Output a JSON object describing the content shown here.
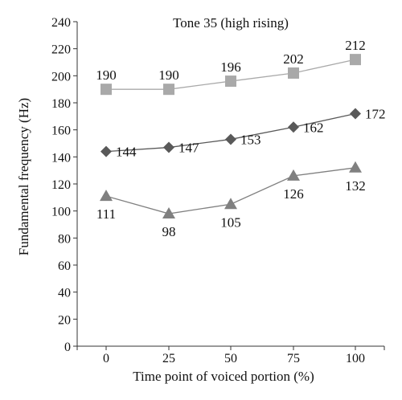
{
  "chart_data": {
    "type": "line",
    "title": "Tone 35 (high rising)",
    "xlabel": "Time point of voiced portion (%)",
    "ylabel": "Fundamental frequency (Hz)",
    "x": [
      0,
      25,
      50,
      75,
      100
    ],
    "x_tick_labels": [
      "0",
      "25",
      "50",
      "75",
      "100"
    ],
    "ylim": [
      0,
      240
    ],
    "y_ticks": [
      0,
      20,
      40,
      60,
      80,
      100,
      120,
      140,
      160,
      180,
      200,
      220,
      240
    ],
    "grid": false,
    "legend": "none",
    "series": [
      {
        "marker": "square",
        "color": "#a9a9a9",
        "values": [
          190,
          190,
          196,
          202,
          212
        ],
        "label_position": "above"
      },
      {
        "marker": "diamond",
        "color": "#595959",
        "values": [
          144,
          147,
          153,
          162,
          172
        ],
        "label_position": "right"
      },
      {
        "marker": "triangle",
        "color": "#808080",
        "values": [
          111,
          98,
          105,
          126,
          132
        ],
        "label_position": "below"
      }
    ]
  }
}
